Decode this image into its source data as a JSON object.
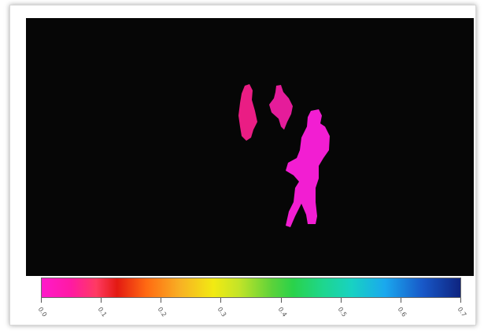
{
  "colors": {
    "background": "#060606",
    "silhouette_left": "#ea1d84",
    "silhouette_main": "#f21ed2",
    "colorbar_start": "#ff1acb",
    "colorbar_end": "#0e2480"
  },
  "colorbar": {
    "tick_labels": [
      "0.0",
      "0.1",
      "0.2",
      "0.3",
      "0.4",
      "0.5",
      "0.6",
      "0.7"
    ]
  }
}
